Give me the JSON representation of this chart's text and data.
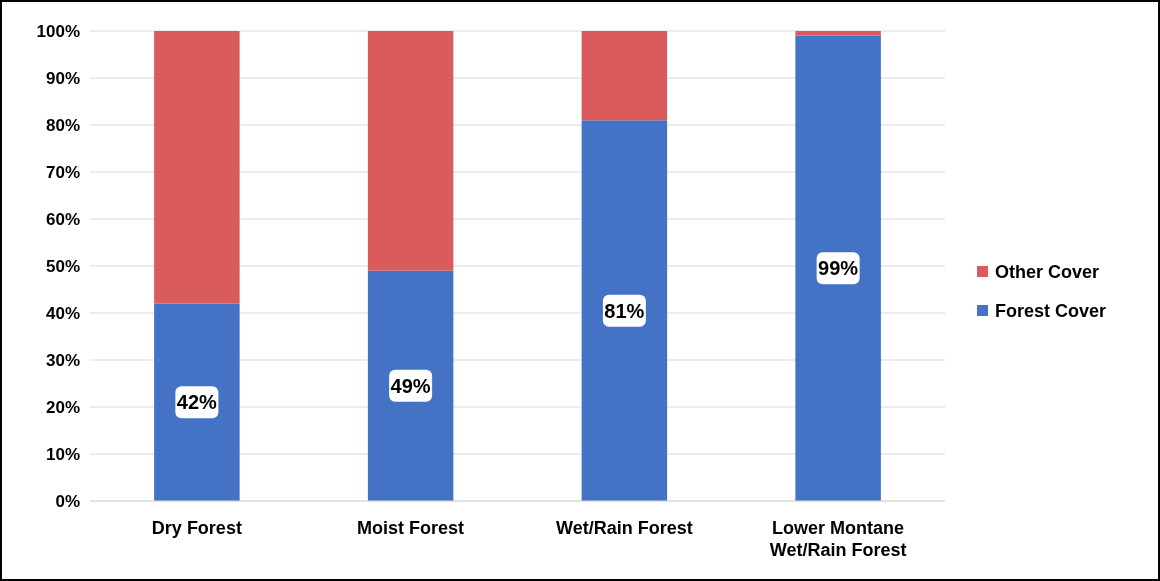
{
  "chart_data": {
    "type": "bar",
    "stacked": true,
    "categories": [
      "Dry Forest",
      "Moist Forest",
      "Wet/Rain Forest",
      "Lower Montane Wet/Rain Forest"
    ],
    "series": [
      {
        "name": "Forest Cover",
        "color": "#4472c4",
        "values": [
          42,
          49,
          81,
          99
        ],
        "value_labels": [
          "42%",
          "49%",
          "81%",
          "99%"
        ]
      },
      {
        "name": "Other Cover",
        "color": "#d95b5b",
        "values": [
          58,
          51,
          19,
          1
        ]
      }
    ],
    "ylim": [
      0,
      100
    ],
    "yticks": [
      {
        "value": 0,
        "label": "0%"
      },
      {
        "value": 10,
        "label": "10%"
      },
      {
        "value": 20,
        "label": "20%"
      },
      {
        "value": 30,
        "label": "30%"
      },
      {
        "value": 40,
        "label": "40%"
      },
      {
        "value": 50,
        "label": "50%"
      },
      {
        "value": 60,
        "label": "60%"
      },
      {
        "value": 70,
        "label": "70%"
      },
      {
        "value": 80,
        "label": "80%"
      },
      {
        "value": 90,
        "label": "90%"
      },
      {
        "value": 100,
        "label": "100%"
      }
    ],
    "grid": "y",
    "legend": "right"
  }
}
